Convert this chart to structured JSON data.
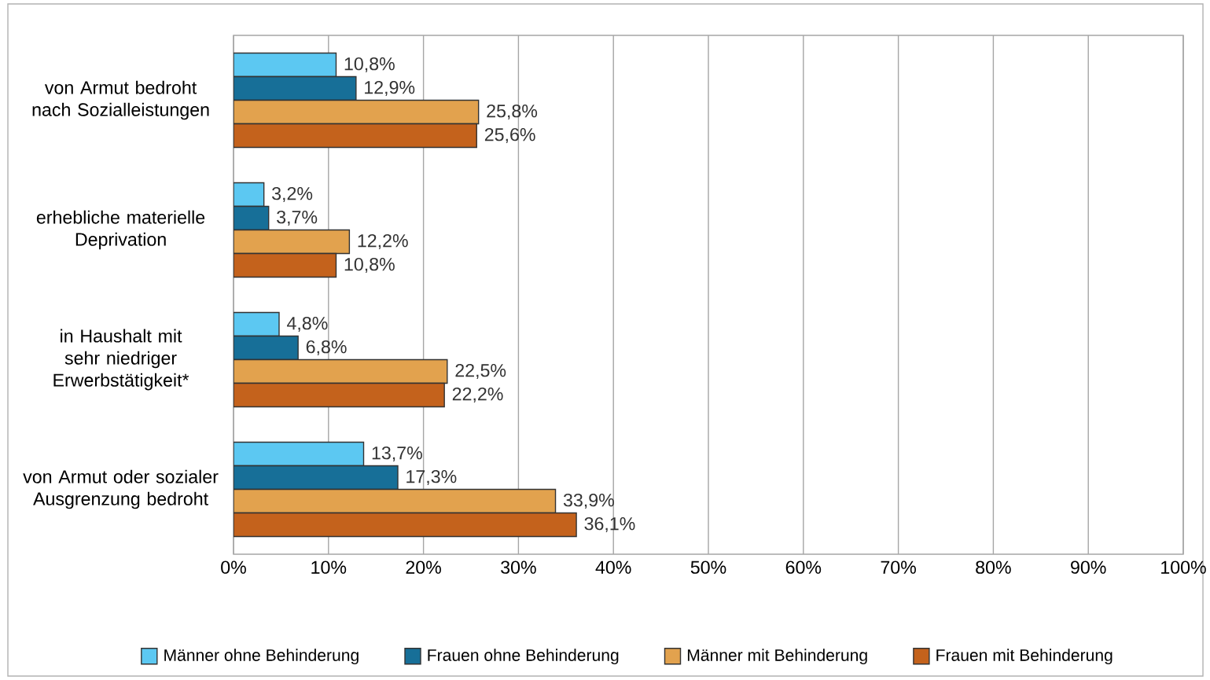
{
  "chart_data": {
    "type": "bar",
    "orientation": "horizontal",
    "categories": [
      "von Armut bedroht nach Sozialleistungen",
      "erhebliche materielle Deprivation",
      "in Haushalt mit sehr niedriger Erwerbstätigkeit*",
      "von Armut oder sozialer Ausgrenzung bedroht"
    ],
    "series": [
      {
        "name": "Männer ohne Behinderung",
        "color": "#5cc8f2",
        "values": [
          10.8,
          3.2,
          4.8,
          13.7
        ],
        "value_labels": [
          "10,8%",
          "3,2%",
          "4,8%",
          "13,7%"
        ]
      },
      {
        "name": "Frauen ohne Behinderung",
        "color": "#176f98",
        "values": [
          12.9,
          3.7,
          6.8,
          17.3
        ],
        "value_labels": [
          "12,9%",
          "3,7%",
          "6,8%",
          "17,3%"
        ]
      },
      {
        "name": "Männer mit Behinderung",
        "color": "#e2a24e",
        "values": [
          25.8,
          12.2,
          22.5,
          33.9
        ],
        "value_labels": [
          "25,8%",
          "12,2%",
          "22,5%",
          "33,9%"
        ]
      },
      {
        "name": "Frauen mit Behinderung",
        "color": "#c4621c",
        "values": [
          25.6,
          10.8,
          22.2,
          36.1
        ],
        "value_labels": [
          "25,6%",
          "10,8%",
          "22,2%",
          "36,1%"
        ]
      }
    ],
    "xlim": [
      0,
      100
    ],
    "xticks": [
      {
        "value": 0,
        "label": "0%"
      },
      {
        "value": 10,
        "label": "10%"
      },
      {
        "value": 20,
        "label": "20%"
      },
      {
        "value": 30,
        "label": "30%"
      },
      {
        "value": 40,
        "label": "40%"
      },
      {
        "value": 50,
        "label": "50%"
      },
      {
        "value": 60,
        "label": "60%"
      },
      {
        "value": 70,
        "label": "70%"
      },
      {
        "value": 80,
        "label": "80%"
      },
      {
        "value": 90,
        "label": "90%"
      },
      {
        "value": 100,
        "label": "100%"
      }
    ],
    "grid": "x",
    "legend": "bottom"
  }
}
